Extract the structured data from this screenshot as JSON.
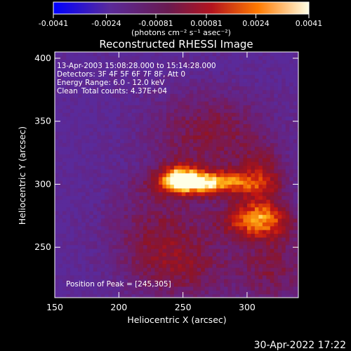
{
  "chart_data": {
    "type": "heatmap",
    "title": "Reconstructed RHESSI Image",
    "xlabel": "Heliocentric X (arcsec)",
    "ylabel": "Heliocentric Y (arcsec)",
    "x_range": [
      150,
      340
    ],
    "y_range": [
      210,
      405
    ],
    "x_ticks": [
      150,
      200,
      250,
      300
    ],
    "y_ticks": [
      250,
      300,
      350,
      400
    ],
    "colorbar": {
      "range": [
        -0.0041,
        0.0041
      ],
      "tick_values": [
        -0.0041,
        -0.0024,
        -0.00081,
        0.00081,
        0.0024,
        0.0041
      ],
      "tick_labels": [
        "-0.0041",
        "-0.0024",
        "-0.00081",
        "0.00081",
        "0.0024",
        "0.0041"
      ],
      "unit_label": "(photons cm⁻² s⁻¹ asec⁻²)"
    },
    "annotations": {
      "time_range": "13-Apr-2003 15:08:28.000 to 15:14:28.000",
      "detectors": "Detectors: 3F 4F 5F 6F 7F 8F, Att 0",
      "energy": "Energy Range: 6.0 - 12.0 keV",
      "method": "Clean",
      "total_counts": "Total counts: 4.37E+04",
      "peak": "Position of Peak = [245,305]"
    },
    "peak_position": [
      245,
      305
    ],
    "map_colors": {
      "background": "#000000",
      "low": "#5a2a9a",
      "mid": "#b4141e",
      "high": "#ffffe6"
    },
    "sources": [
      {
        "x": 265,
        "y": 300,
        "strength": 1.0,
        "sx": 25,
        "sy": 7
      },
      {
        "x": 245,
        "y": 305,
        "strength": 0.55,
        "sx": 10,
        "sy": 8
      },
      {
        "x": 305,
        "y": 270,
        "strength": 0.75,
        "sx": 20,
        "sy": 10
      },
      {
        "x": 310,
        "y": 300,
        "strength": 0.5,
        "sx": 14,
        "sy": 18
      },
      {
        "x": 270,
        "y": 340,
        "strength": 0.45,
        "sx": 35,
        "sy": 25
      },
      {
        "x": 230,
        "y": 260,
        "strength": 0.4,
        "sx": 30,
        "sy": 30
      },
      {
        "x": 320,
        "y": 235,
        "strength": 0.4,
        "sx": 20,
        "sy": 25
      },
      {
        "x": 255,
        "y": 230,
        "strength": 0.3,
        "sx": 30,
        "sy": 20
      }
    ]
  },
  "footer": {
    "date": "30-Apr-2022 17:22"
  }
}
